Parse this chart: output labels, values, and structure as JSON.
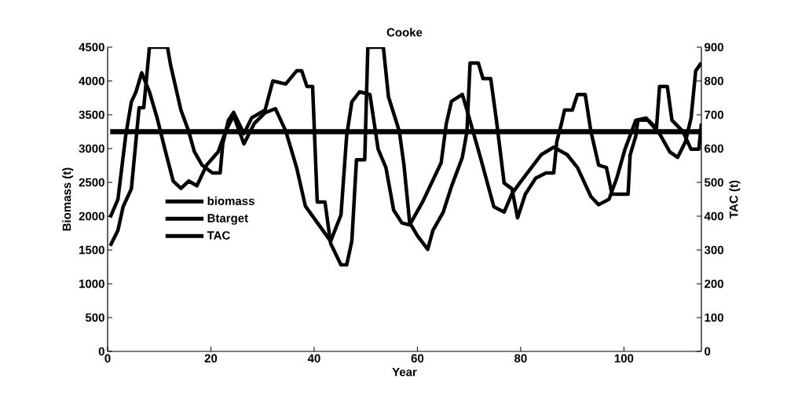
{
  "chart_data": {
    "type": "line",
    "title": "Cooke",
    "xlabel": "Year",
    "ylabel": "Biomass (t)",
    "y2label": "TAC (t)",
    "xlim": [
      0,
      115
    ],
    "xticks": [
      0,
      20,
      40,
      60,
      80,
      100
    ],
    "ylim": [
      0,
      4500
    ],
    "yticks": [
      0,
      500,
      1000,
      1500,
      2000,
      2500,
      3000,
      3500,
      4000,
      4500
    ],
    "y2lim": [
      0,
      900
    ],
    "y2ticks": [
      0,
      100,
      200,
      300,
      400,
      500,
      600,
      700,
      800,
      900
    ],
    "legend": "left",
    "grid": false,
    "marker": "none",
    "line_style": "solid",
    "series": [
      {
        "name": "biomass",
        "color": "#000000",
        "x": [
          0.5,
          2,
          3.5,
          4.6,
          5.5,
          6.6,
          8.1,
          9.6,
          11.1,
          12.7,
          14.2,
          15.7,
          17.3,
          19.2,
          21.4,
          22.9,
          24.4,
          26.4,
          28.4,
          30.5,
          32.5,
          34.5,
          36.6,
          38.3,
          43.2,
          45.2,
          46.3,
          47.3,
          48.8,
          50.8,
          52.4,
          53.9,
          55.4,
          57,
          58.5,
          61,
          64.6,
          65.6,
          66.6,
          68.7,
          69.6,
          72.2,
          74.8,
          76.8,
          78.3,
          79.8,
          84,
          86.4,
          89,
          91,
          93.6,
          95.1,
          97.1,
          98.6,
          100.2,
          102.3,
          104.3,
          106.9,
          108.9,
          110.4,
          111.9,
          113,
          113.9,
          115
        ],
        "values": [
          1980,
          2250,
          3190,
          3690,
          3840,
          4120,
          3840,
          3450,
          2990,
          2520,
          2410,
          2520,
          2450,
          2760,
          2950,
          3260,
          3490,
          3070,
          3370,
          3530,
          3590,
          3260,
          2720,
          2150,
          1630,
          2020,
          3190,
          3690,
          3840,
          3800,
          2990,
          2720,
          2090,
          1900,
          1870,
          2210,
          2790,
          3370,
          3700,
          3800,
          3570,
          2870,
          2140,
          2060,
          2330,
          2490,
          2910,
          3020,
          2910,
          2720,
          2290,
          2170,
          2250,
          2560,
          2990,
          3420,
          3450,
          3220,
          2950,
          2870,
          3100,
          3450,
          4150,
          4270
        ]
      },
      {
        "name": "Btarget",
        "color": "#000000",
        "x": [
          0.5,
          115
        ],
        "values": [
          3250,
          3250
        ]
      },
      {
        "name": "TAC",
        "color": "#000000",
        "axis": "y2",
        "x": [
          0.5,
          2,
          3,
          4.6,
          6.1,
          7,
          8.1,
          11.6,
          12.2,
          14.2,
          15.7,
          16.8,
          18.3,
          20.3,
          21.8,
          22.3,
          23.4,
          24.4,
          26.4,
          27.9,
          30.5,
          32,
          34.5,
          36.6,
          37.6,
          38.6,
          39.7,
          40.6,
          42.1,
          43.2,
          45.2,
          46.3,
          47.3,
          48.2,
          49.8,
          50.4,
          53.4,
          54.4,
          56.5,
          57.4,
          58.5,
          60,
          62,
          63,
          65,
          66.6,
          68.7,
          69.6,
          70.2,
          71.8,
          72.7,
          74.2,
          75.3,
          76.8,
          78.3,
          79.4,
          80.9,
          82.9,
          84.9,
          86.4,
          87,
          87.9,
          88.5,
          90,
          91,
          92.5,
          93.6,
          95.1,
          96.6,
          97.7,
          100.8,
          101.2,
          102.3,
          102.7,
          104.7,
          106.3,
          106.9,
          108.4,
          109.3,
          111.4,
          113,
          114.5,
          115
        ],
        "values": [
          312,
          358,
          428,
          481,
          721,
          721,
          900,
          900,
          847,
          714,
          651,
          591,
          551,
          528,
          528,
          614,
          684,
          707,
          644,
          691,
          714,
          800,
          791,
          830,
          830,
          784,
          784,
          442,
          442,
          319,
          256,
          256,
          326,
          567,
          567,
          900,
          900,
          753,
          651,
          551,
          381,
          342,
          302,
          358,
          412,
          488,
          574,
          651,
          853,
          853,
          807,
          807,
          684,
          498,
          481,
          395,
          465,
          512,
          528,
          528,
          621,
          674,
          714,
          714,
          760,
          760,
          651,
          551,
          544,
          465,
          465,
          581,
          637,
          684,
          684,
          660,
          784,
          784,
          684,
          651,
          598,
          598,
          674
        ]
      }
    ]
  }
}
